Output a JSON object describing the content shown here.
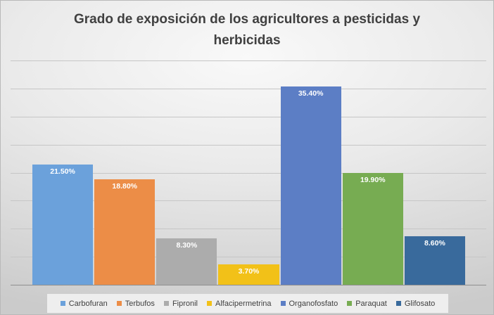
{
  "chart_data": {
    "type": "bar",
    "title": "Grado de exposición de los agricultores a pesticidas y herbicidas",
    "categories": [
      "Carbofuran",
      "Terbufos",
      "Fipronil",
      "Alfacipermetrina",
      "Organofosfato",
      "Paraquat",
      "Glifosato"
    ],
    "values": [
      21.5,
      18.8,
      8.3,
      3.7,
      35.4,
      19.9,
      8.6
    ],
    "data_labels": [
      "21.50%",
      "18.80%",
      "8.30%",
      "3.70%",
      "35.40%",
      "19.90%",
      "8.60%"
    ],
    "colors": [
      "#6BA1DB",
      "#EC8D47",
      "#ACACAC",
      "#F2C118",
      "#5C7EC5",
      "#77AC52",
      "#396A9C"
    ],
    "xlabel": "",
    "ylabel": "",
    "ylim": [
      0,
      40
    ],
    "gridline_interval": 5,
    "grid": true,
    "y_axis_labels_visible": false,
    "legend_position": "bottom",
    "data_label_position": "inside-end",
    "data_label_color": "#ffffff",
    "title_color": "#404040",
    "gridline_color": "#c6c6c6",
    "legend_background": "#eeeeee"
  }
}
